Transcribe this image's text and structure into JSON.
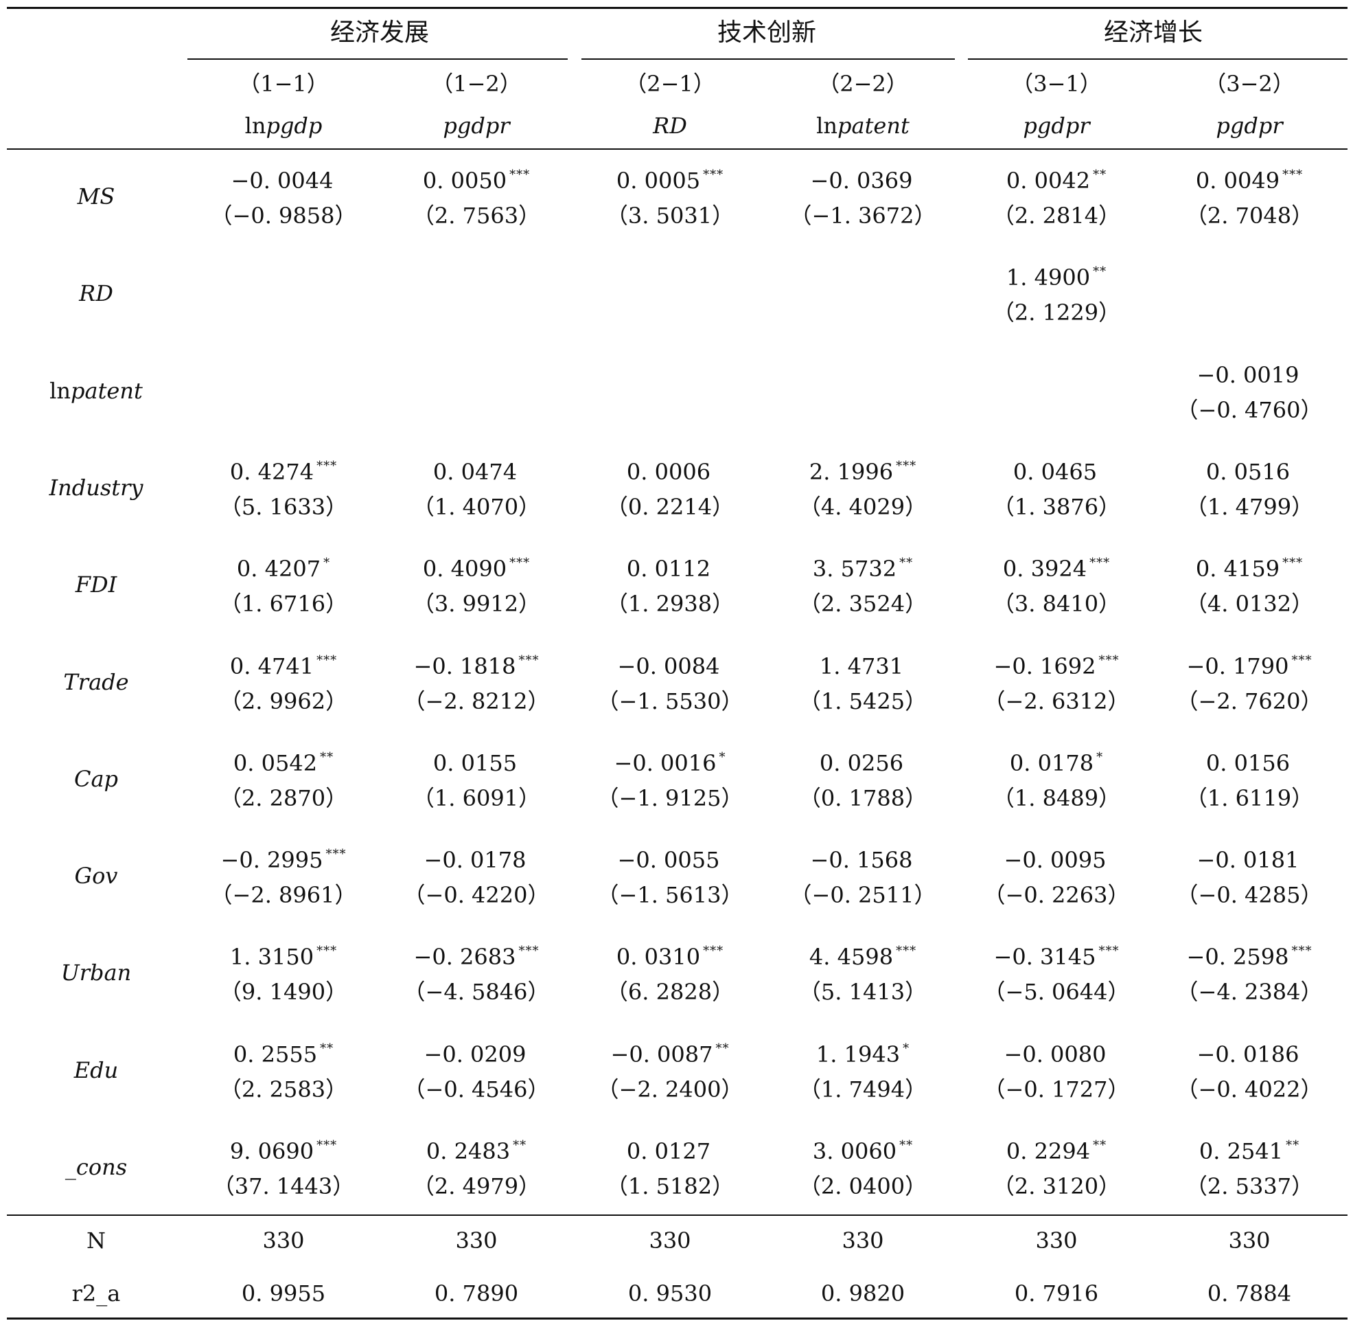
{
  "groups": [
    {
      "label": "经济发展"
    },
    {
      "label": "技术创新"
    },
    {
      "label": "经济增长"
    }
  ],
  "models": [
    {
      "num": "（1−1）",
      "dep_prefix": "ln",
      "dep_italic": "pgdp"
    },
    {
      "num": "（1−2）",
      "dep_prefix": "",
      "dep_italic": "pgdpr"
    },
    {
      "num": "（2−1）",
      "dep_prefix": "",
      "dep_italic": "RD"
    },
    {
      "num": "（2−2）",
      "dep_prefix": "ln",
      "dep_italic": "patent"
    },
    {
      "num": "（3−1）",
      "dep_prefix": "",
      "dep_italic": "pgdpr"
    },
    {
      "num": "（3−2）",
      "dep_prefix": "",
      "dep_italic": "pgdpr"
    }
  ],
  "rows": [
    {
      "prefix": "",
      "name": "MS",
      "cells": [
        {
          "coef": "−0. 0044",
          "stars": "",
          "t": "（−0. 9858）"
        },
        {
          "coef": "0. 0050",
          "stars": "***",
          "t": "（2. 7563）"
        },
        {
          "coef": "0. 0005",
          "stars": "***",
          "t": "（3. 5031）"
        },
        {
          "coef": "−0. 0369",
          "stars": "",
          "t": "（−1. 3672）"
        },
        {
          "coef": "0. 0042",
          "stars": "**",
          "t": "（2. 2814）"
        },
        {
          "coef": "0. 0049",
          "stars": "***",
          "t": "（2. 7048）"
        }
      ]
    },
    {
      "prefix": "",
      "name": "RD",
      "cells": [
        {
          "coef": "",
          "stars": "",
          "t": ""
        },
        {
          "coef": "",
          "stars": "",
          "t": ""
        },
        {
          "coef": "",
          "stars": "",
          "t": ""
        },
        {
          "coef": "",
          "stars": "",
          "t": ""
        },
        {
          "coef": "1. 4900",
          "stars": "**",
          "t": "（2. 1229）"
        },
        {
          "coef": "",
          "stars": "",
          "t": ""
        }
      ]
    },
    {
      "prefix": "ln",
      "name": "patent",
      "cells": [
        {
          "coef": "",
          "stars": "",
          "t": ""
        },
        {
          "coef": "",
          "stars": "",
          "t": ""
        },
        {
          "coef": "",
          "stars": "",
          "t": ""
        },
        {
          "coef": "",
          "stars": "",
          "t": ""
        },
        {
          "coef": "",
          "stars": "",
          "t": ""
        },
        {
          "coef": "−0. 0019",
          "stars": "",
          "t": "（−0. 4760）"
        }
      ]
    },
    {
      "prefix": "",
      "name": "Industry",
      "cells": [
        {
          "coef": "0. 4274",
          "stars": "***",
          "t": "（5. 1633）"
        },
        {
          "coef": "0. 0474",
          "stars": "",
          "t": "（1. 4070）"
        },
        {
          "coef": "0. 0006",
          "stars": "",
          "t": "（0. 2214）"
        },
        {
          "coef": "2. 1996",
          "stars": "***",
          "t": "（4. 4029）"
        },
        {
          "coef": "0. 0465",
          "stars": "",
          "t": "（1. 3876）"
        },
        {
          "coef": "0. 0516",
          "stars": "",
          "t": "（1. 4799）"
        }
      ]
    },
    {
      "prefix": "",
      "name": "FDI",
      "cells": [
        {
          "coef": "0. 4207",
          "stars": "*",
          "t": "（1. 6716）"
        },
        {
          "coef": "0. 4090",
          "stars": "***",
          "t": "（3. 9912）"
        },
        {
          "coef": "0. 0112",
          "stars": "",
          "t": "（1. 2938）"
        },
        {
          "coef": "3. 5732",
          "stars": "**",
          "t": "（2. 3524）"
        },
        {
          "coef": "0. 3924",
          "stars": "***",
          "t": "（3. 8410）"
        },
        {
          "coef": "0. 4159",
          "stars": "***",
          "t": "（4. 0132）"
        }
      ]
    },
    {
      "prefix": "",
      "name": "Trade",
      "cells": [
        {
          "coef": "0. 4741",
          "stars": "***",
          "t": "（2. 9962）"
        },
        {
          "coef": "−0. 1818",
          "stars": "***",
          "t": "（−2. 8212）"
        },
        {
          "coef": "−0. 0084",
          "stars": "",
          "t": "（−1. 5530）"
        },
        {
          "coef": "1. 4731",
          "stars": "",
          "t": "（1. 5425）"
        },
        {
          "coef": "−0. 1692",
          "stars": "***",
          "t": "（−2. 6312）"
        },
        {
          "coef": "−0. 1790",
          "stars": "***",
          "t": "（−2. 7620）"
        }
      ]
    },
    {
      "prefix": "",
      "name": "Cap",
      "cells": [
        {
          "coef": "0. 0542",
          "stars": "**",
          "t": "（2. 2870）"
        },
        {
          "coef": "0. 0155",
          "stars": "",
          "t": "（1. 6091）"
        },
        {
          "coef": "−0. 0016",
          "stars": "*",
          "t": "（−1. 9125）"
        },
        {
          "coef": "0. 0256",
          "stars": "",
          "t": "（0. 1788）"
        },
        {
          "coef": "0. 0178",
          "stars": "*",
          "t": "（1. 8489）"
        },
        {
          "coef": "0. 0156",
          "stars": "",
          "t": "（1. 6119）"
        }
      ]
    },
    {
      "prefix": "",
      "name": "Gov",
      "cells": [
        {
          "coef": "−0. 2995",
          "stars": "***",
          "t": "（−2. 8961）"
        },
        {
          "coef": "−0. 0178",
          "stars": "",
          "t": "（−0. 4220）"
        },
        {
          "coef": "−0. 0055",
          "stars": "",
          "t": "（−1. 5613）"
        },
        {
          "coef": "−0. 1568",
          "stars": "",
          "t": "（−0. 2511）"
        },
        {
          "coef": "−0. 0095",
          "stars": "",
          "t": "（−0. 2263）"
        },
        {
          "coef": "−0. 0181",
          "stars": "",
          "t": "（−0. 4285）"
        }
      ]
    },
    {
      "prefix": "",
      "name": "Urban",
      "cells": [
        {
          "coef": "1. 3150",
          "stars": "***",
          "t": "（9. 1490）"
        },
        {
          "coef": "−0. 2683",
          "stars": "***",
          "t": "（−4. 5846）"
        },
        {
          "coef": "0. 0310",
          "stars": "***",
          "t": "（6. 2828）"
        },
        {
          "coef": "4. 4598",
          "stars": "***",
          "t": "（5. 1413）"
        },
        {
          "coef": "−0. 3145",
          "stars": "***",
          "t": "（−5. 0644）"
        },
        {
          "coef": "−0. 2598",
          "stars": "***",
          "t": "（−4. 2384）"
        }
      ]
    },
    {
      "prefix": "",
      "name": "Edu",
      "cells": [
        {
          "coef": "0. 2555",
          "stars": "**",
          "t": "（2. 2583）"
        },
        {
          "coef": "−0. 0209",
          "stars": "",
          "t": "（−0. 4546）"
        },
        {
          "coef": "−0. 0087",
          "stars": "**",
          "t": "（−2. 2400）"
        },
        {
          "coef": "1. 1943",
          "stars": "*",
          "t": "（1. 7494）"
        },
        {
          "coef": "−0. 0080",
          "stars": "",
          "t": "（−0. 1727）"
        },
        {
          "coef": "−0. 0186",
          "stars": "",
          "t": "（−0. 4022）"
        }
      ]
    },
    {
      "prefix": "",
      "name": "_cons",
      "cells": [
        {
          "coef": "9. 0690",
          "stars": "***",
          "t": "（37. 1443）"
        },
        {
          "coef": "0. 2483",
          "stars": "**",
          "t": "（2. 4979）"
        },
        {
          "coef": "0. 0127",
          "stars": "",
          "t": "（1. 5182）"
        },
        {
          "coef": "3. 0060",
          "stars": "**",
          "t": "（2. 0400）"
        },
        {
          "coef": "0. 2294",
          "stars": "**",
          "t": "（2. 3120）"
        },
        {
          "coef": "0. 2541",
          "stars": "**",
          "t": "（2. 5337）"
        }
      ]
    }
  ],
  "stats": [
    {
      "label": "N",
      "values": [
        "330",
        "330",
        "330",
        "330",
        "330",
        "330"
      ]
    },
    {
      "label": "r2_a",
      "values": [
        "0. 9955",
        "0. 7890",
        "0. 9530",
        "0. 9820",
        "0. 7916",
        "0. 7884"
      ]
    }
  ]
}
